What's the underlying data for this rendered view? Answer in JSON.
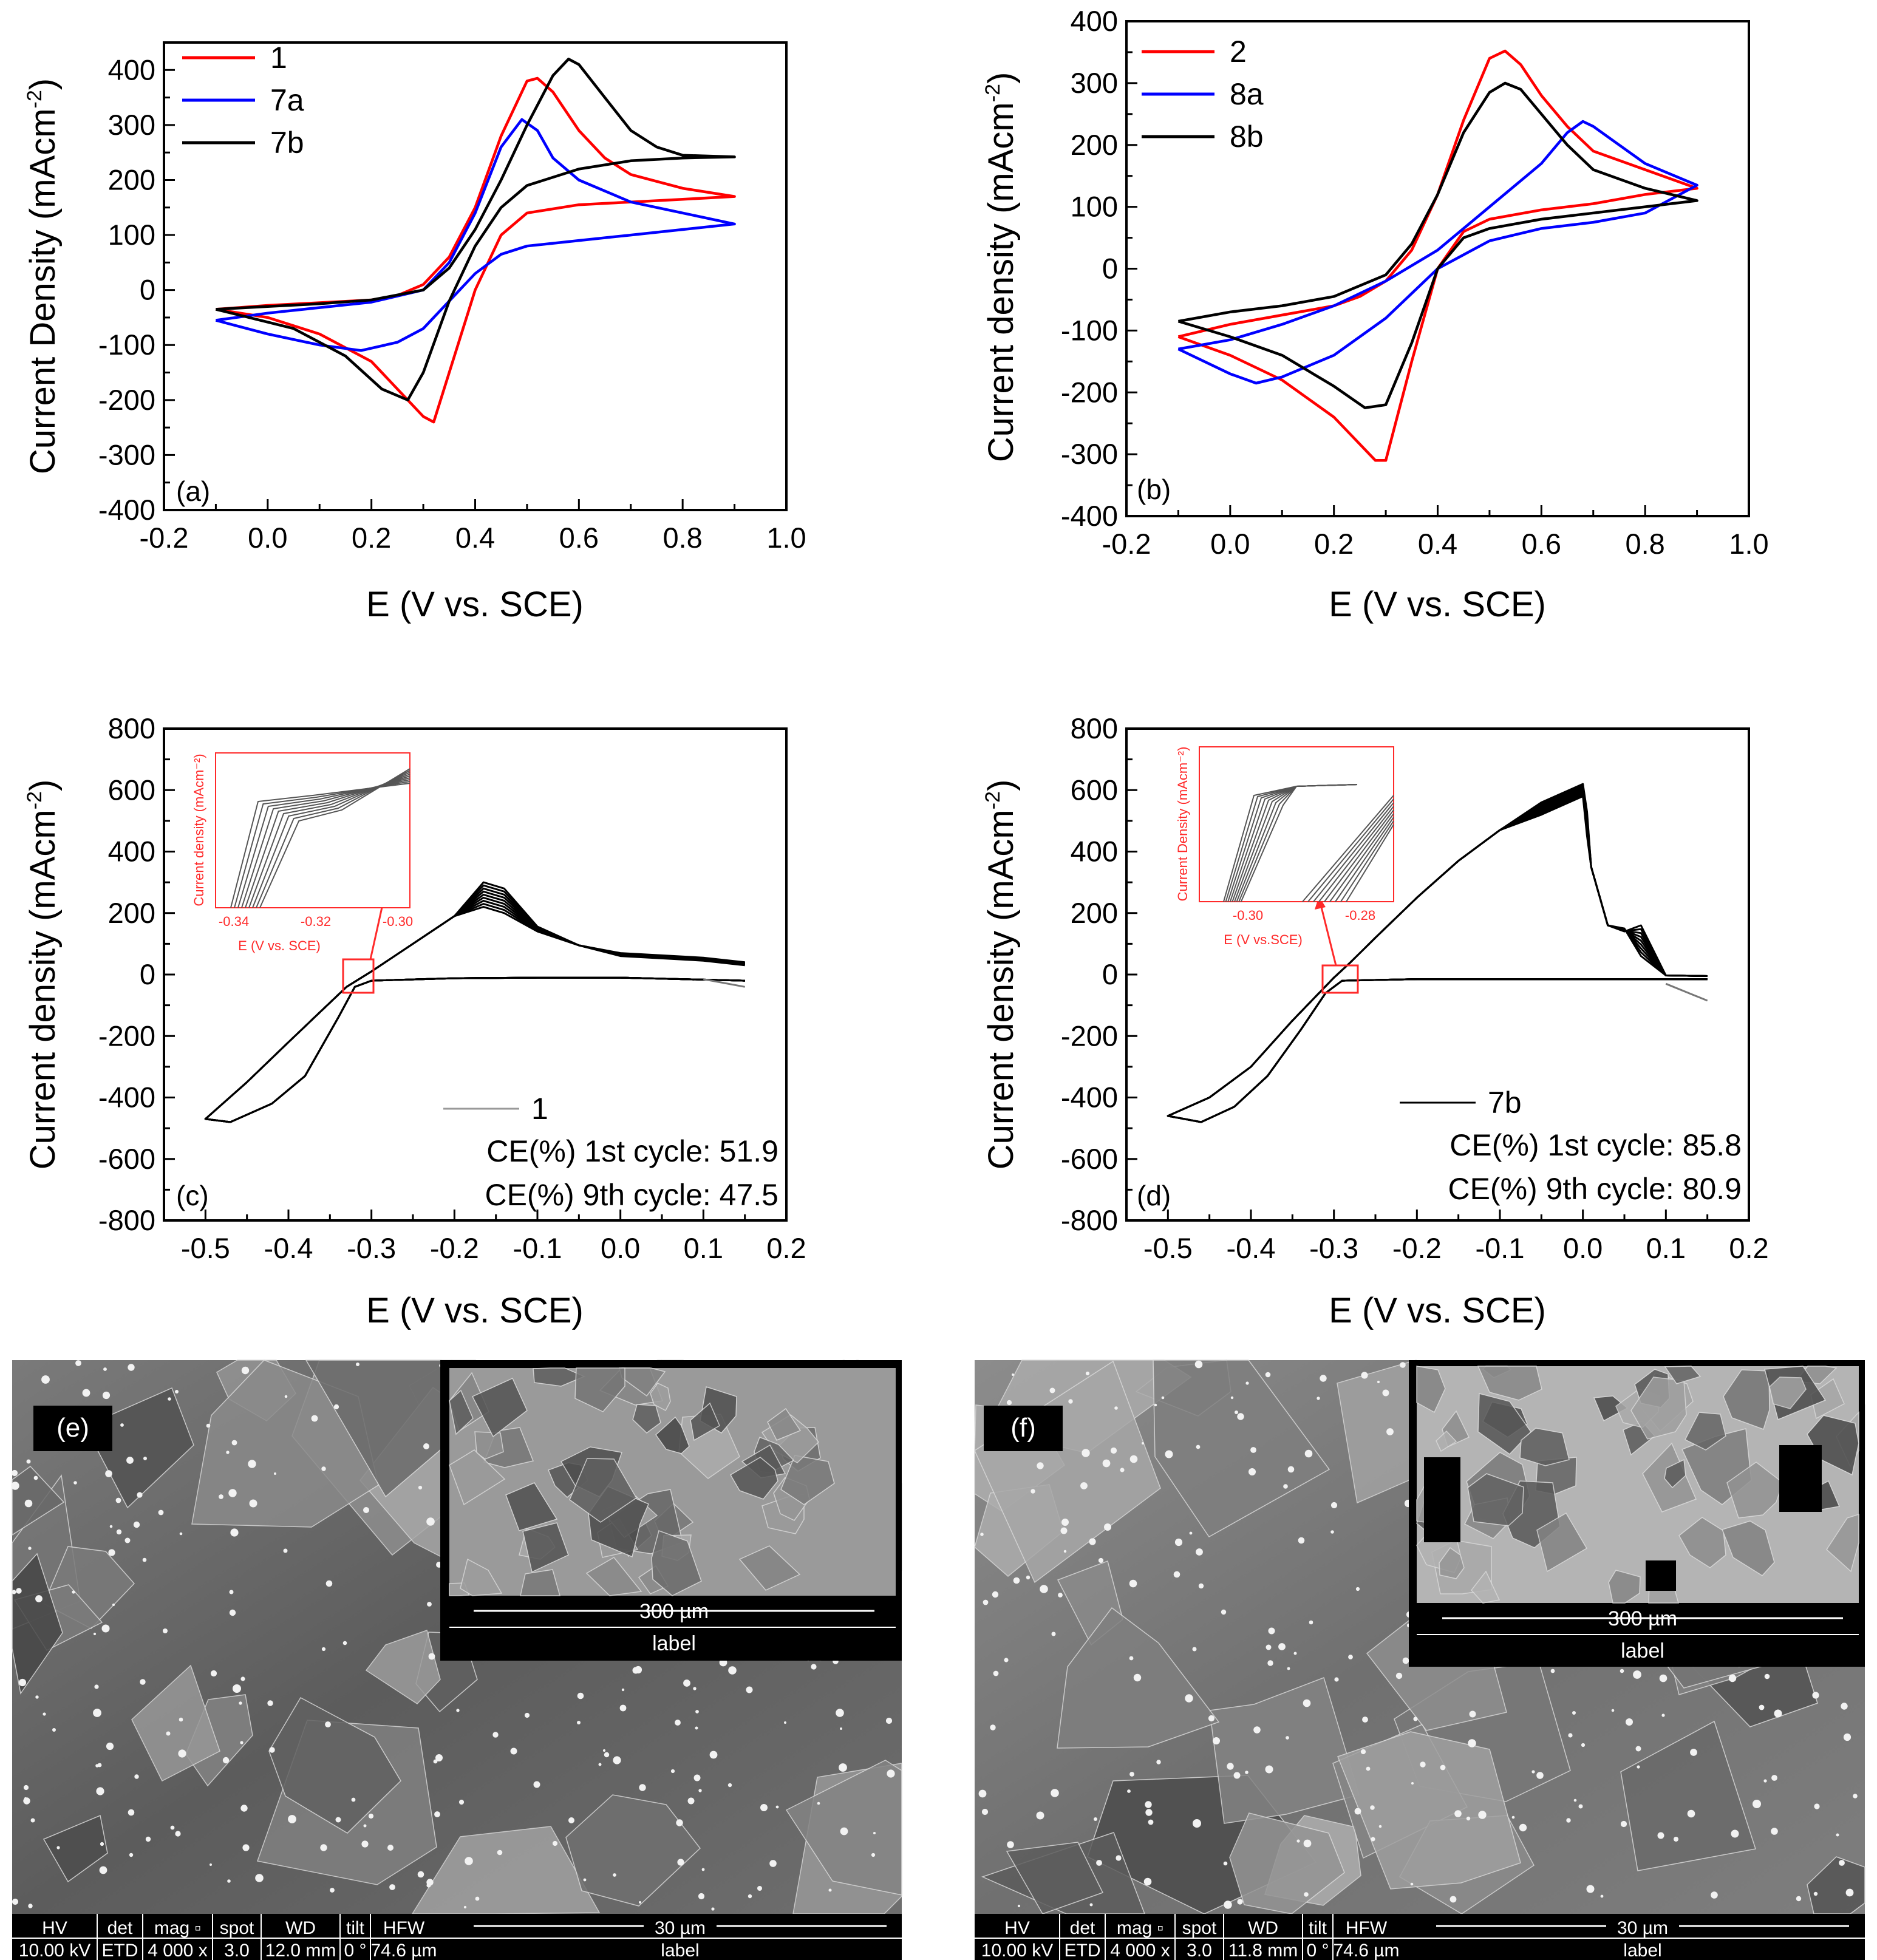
{
  "chart_data": [
    {
      "id": "a",
      "type": "line",
      "panel_label": "(a)",
      "xlabel": "E (V vs. SCE)",
      "ylabel_main": "Current Density (mAcm",
      "ylabel_sup": "-2",
      "ylabel_close": ")",
      "xlim": [
        -0.2,
        1.0
      ],
      "ylim": [
        -400,
        450
      ],
      "xticks": [
        -0.2,
        0.0,
        0.2,
        0.4,
        0.6,
        0.8,
        1.0
      ],
      "xtick_labels": [
        "-0.2",
        "0.0",
        "0.2",
        "0.4",
        "0.6",
        "0.8",
        "1.0"
      ],
      "yticks": [
        -400,
        -300,
        -200,
        -100,
        0,
        100,
        200,
        300,
        400
      ],
      "ytick_labels": [
        "-400",
        "-300",
        "-200",
        "-100",
        "0",
        "100",
        "200",
        "300",
        "400"
      ],
      "legend": [
        "1",
        "7a",
        "7b"
      ],
      "series": [
        {
          "name": "1",
          "color": "#ff0000",
          "points": [
            [
              -0.1,
              -35
            ],
            [
              0.0,
              -28
            ],
            [
              0.1,
              -23
            ],
            [
              0.2,
              -18
            ],
            [
              0.25,
              -10
            ],
            [
              0.3,
              10
            ],
            [
              0.35,
              60
            ],
            [
              0.4,
              150
            ],
            [
              0.45,
              280
            ],
            [
              0.5,
              380
            ],
            [
              0.52,
              385
            ],
            [
              0.55,
              360
            ],
            [
              0.6,
              290
            ],
            [
              0.65,
              240
            ],
            [
              0.7,
              210
            ],
            [
              0.8,
              185
            ],
            [
              0.9,
              170
            ],
            [
              0.8,
              165
            ],
            [
              0.7,
              160
            ],
            [
              0.6,
              155
            ],
            [
              0.5,
              140
            ],
            [
              0.45,
              100
            ],
            [
              0.4,
              0
            ],
            [
              0.35,
              -150
            ],
            [
              0.32,
              -240
            ],
            [
              0.3,
              -230
            ],
            [
              0.25,
              -180
            ],
            [
              0.2,
              -130
            ],
            [
              0.1,
              -80
            ],
            [
              0.0,
              -50
            ],
            [
              -0.1,
              -35
            ]
          ]
        },
        {
          "name": "7a",
          "color": "#0000ff",
          "points": [
            [
              -0.1,
              -55
            ],
            [
              0.0,
              -42
            ],
            [
              0.1,
              -32
            ],
            [
              0.2,
              -22
            ],
            [
              0.3,
              0
            ],
            [
              0.35,
              50
            ],
            [
              0.4,
              140
            ],
            [
              0.45,
              260
            ],
            [
              0.49,
              310
            ],
            [
              0.52,
              290
            ],
            [
              0.55,
              240
            ],
            [
              0.6,
              200
            ],
            [
              0.7,
              160
            ],
            [
              0.8,
              140
            ],
            [
              0.9,
              120
            ],
            [
              0.8,
              110
            ],
            [
              0.7,
              100
            ],
            [
              0.6,
              90
            ],
            [
              0.5,
              80
            ],
            [
              0.45,
              65
            ],
            [
              0.4,
              30
            ],
            [
              0.35,
              -20
            ],
            [
              0.3,
              -70
            ],
            [
              0.25,
              -95
            ],
            [
              0.18,
              -110
            ],
            [
              0.1,
              -100
            ],
            [
              0.0,
              -80
            ],
            [
              -0.1,
              -55
            ]
          ]
        },
        {
          "name": "7b",
          "color": "#000000",
          "points": [
            [
              -0.1,
              -35
            ],
            [
              0.0,
              -30
            ],
            [
              0.1,
              -25
            ],
            [
              0.2,
              -18
            ],
            [
              0.3,
              0
            ],
            [
              0.35,
              40
            ],
            [
              0.4,
              110
            ],
            [
              0.45,
              200
            ],
            [
              0.5,
              300
            ],
            [
              0.55,
              390
            ],
            [
              0.58,
              420
            ],
            [
              0.6,
              410
            ],
            [
              0.65,
              350
            ],
            [
              0.7,
              290
            ],
            [
              0.75,
              260
            ],
            [
              0.8,
              245
            ],
            [
              0.9,
              242
            ],
            [
              0.8,
              240
            ],
            [
              0.7,
              235
            ],
            [
              0.6,
              220
            ],
            [
              0.5,
              190
            ],
            [
              0.45,
              150
            ],
            [
              0.4,
              80
            ],
            [
              0.35,
              -20
            ],
            [
              0.3,
              -150
            ],
            [
              0.27,
              -200
            ],
            [
              0.22,
              -180
            ],
            [
              0.15,
              -120
            ],
            [
              0.05,
              -70
            ],
            [
              -0.1,
              -35
            ]
          ]
        }
      ]
    },
    {
      "id": "b",
      "type": "line",
      "panel_label": "(b)",
      "xlabel": "E (V vs. SCE)",
      "ylabel_main": "Current density (mAcm",
      "ylabel_sup": "-2",
      "ylabel_close": ")",
      "xlim": [
        -0.2,
        1.0
      ],
      "ylim": [
        -400,
        400
      ],
      "xticks": [
        -0.2,
        0.0,
        0.2,
        0.4,
        0.6,
        0.8,
        1.0
      ],
      "xtick_labels": [
        "-0.2",
        "0.0",
        "0.2",
        "0.4",
        "0.6",
        "0.8",
        "1.0"
      ],
      "yticks": [
        -400,
        -300,
        -200,
        -100,
        0,
        100,
        200,
        300,
        400
      ],
      "ytick_labels": [
        "-400",
        "-300",
        "-200",
        "-100",
        "0",
        "100",
        "200",
        "300",
        "400"
      ],
      "legend": [
        "2",
        "8a",
        "8b"
      ],
      "series": [
        {
          "name": "2",
          "color": "#ff0000",
          "points": [
            [
              -0.1,
              -110
            ],
            [
              0.0,
              -90
            ],
            [
              0.1,
              -75
            ],
            [
              0.2,
              -60
            ],
            [
              0.25,
              -45
            ],
            [
              0.3,
              -20
            ],
            [
              0.35,
              30
            ],
            [
              0.4,
              120
            ],
            [
              0.45,
              240
            ],
            [
              0.5,
              340
            ],
            [
              0.53,
              352
            ],
            [
              0.56,
              330
            ],
            [
              0.6,
              280
            ],
            [
              0.65,
              230
            ],
            [
              0.7,
              190
            ],
            [
              0.8,
              160
            ],
            [
              0.9,
              130
            ],
            [
              0.8,
              120
            ],
            [
              0.7,
              105
            ],
            [
              0.6,
              95
            ],
            [
              0.5,
              80
            ],
            [
              0.45,
              60
            ],
            [
              0.4,
              0
            ],
            [
              0.35,
              -150
            ],
            [
              0.3,
              -310
            ],
            [
              0.28,
              -310
            ],
            [
              0.2,
              -240
            ],
            [
              0.1,
              -180
            ],
            [
              0.0,
              -140
            ],
            [
              -0.1,
              -110
            ]
          ]
        },
        {
          "name": "8a",
          "color": "#0000ff",
          "points": [
            [
              -0.1,
              -130
            ],
            [
              0.0,
              -115
            ],
            [
              0.1,
              -90
            ],
            [
              0.2,
              -60
            ],
            [
              0.3,
              -20
            ],
            [
              0.4,
              30
            ],
            [
              0.5,
              100
            ],
            [
              0.6,
              170
            ],
            [
              0.65,
              220
            ],
            [
              0.68,
              238
            ],
            [
              0.7,
              230
            ],
            [
              0.75,
              200
            ],
            [
              0.8,
              170
            ],
            [
              0.9,
              135
            ],
            [
              0.8,
              90
            ],
            [
              0.7,
              75
            ],
            [
              0.6,
              65
            ],
            [
              0.5,
              45
            ],
            [
              0.4,
              0
            ],
            [
              0.3,
              -80
            ],
            [
              0.2,
              -140
            ],
            [
              0.1,
              -175
            ],
            [
              0.05,
              -185
            ],
            [
              0.0,
              -170
            ],
            [
              -0.1,
              -130
            ]
          ]
        },
        {
          "name": "8b",
          "color": "#000000",
          "points": [
            [
              -0.1,
              -85
            ],
            [
              0.0,
              -70
            ],
            [
              0.1,
              -60
            ],
            [
              0.2,
              -45
            ],
            [
              0.3,
              -10
            ],
            [
              0.35,
              40
            ],
            [
              0.4,
              120
            ],
            [
              0.45,
              220
            ],
            [
              0.5,
              285
            ],
            [
              0.53,
              300
            ],
            [
              0.56,
              290
            ],
            [
              0.6,
              250
            ],
            [
              0.65,
              200
            ],
            [
              0.7,
              160
            ],
            [
              0.8,
              130
            ],
            [
              0.9,
              110
            ],
            [
              0.8,
              100
            ],
            [
              0.7,
              90
            ],
            [
              0.6,
              80
            ],
            [
              0.5,
              65
            ],
            [
              0.45,
              50
            ],
            [
              0.4,
              0
            ],
            [
              0.35,
              -120
            ],
            [
              0.3,
              -220
            ],
            [
              0.26,
              -225
            ],
            [
              0.2,
              -190
            ],
            [
              0.1,
              -140
            ],
            [
              0.0,
              -110
            ],
            [
              -0.1,
              -85
            ]
          ]
        }
      ]
    },
    {
      "id": "c",
      "type": "line",
      "panel_label": "(c)",
      "xlabel": "E (V vs. SCE)",
      "ylabel_main": "Current density (mAcm",
      "ylabel_sup": "-2",
      "ylabel_close": ")",
      "xlim": [
        -0.55,
        0.2
      ],
      "ylim": [
        -800,
        800
      ],
      "xticks": [
        -0.5,
        -0.4,
        -0.3,
        -0.2,
        -0.1,
        0.0,
        0.1,
        0.2
      ],
      "xtick_labels": [
        "-0.5",
        "-0.4",
        "-0.3",
        "-0.2",
        "-0.1",
        "0.0",
        "0.1",
        "0.2"
      ],
      "yticks": [
        -800,
        -600,
        -400,
        -200,
        0,
        200,
        400,
        600,
        800
      ],
      "ytick_labels": [
        "-800",
        "-600",
        "-400",
        "-200",
        "0",
        "200",
        "400",
        "600",
        "800"
      ],
      "legend": [
        "1"
      ],
      "ce_lines": [
        "CE(%) 1st cycle: 51.9",
        "CE(%) 9th cycle: 47.5"
      ],
      "cycles": 9,
      "peak_range": [
        220,
        300
      ],
      "inset": {
        "xlabel": "E (V vs. SCE)",
        "ylabel": "Current density (mAcm⁻²)",
        "xtick_labels": [
          "-0.34",
          "-0.32",
          "-0.30"
        ]
      }
    },
    {
      "id": "d",
      "type": "line",
      "panel_label": "(d)",
      "xlabel": "E (V vs. SCE)",
      "ylabel_main": "Current density (mAcm",
      "ylabel_sup": "-2",
      "ylabel_close": ")",
      "xlim": [
        -0.55,
        0.2
      ],
      "ylim": [
        -800,
        800
      ],
      "xticks": [
        -0.5,
        -0.4,
        -0.3,
        -0.2,
        -0.1,
        0.0,
        0.1,
        0.2
      ],
      "xtick_labels": [
        "-0.5",
        "-0.4",
        "-0.3",
        "-0.2",
        "-0.1",
        "0.0",
        "0.1",
        "0.2"
      ],
      "yticks": [
        -800,
        -600,
        -400,
        -200,
        0,
        200,
        400,
        600,
        800
      ],
      "ytick_labels": [
        "-800",
        "-600",
        "-400",
        "-200",
        "0",
        "200",
        "400",
        "600",
        "800"
      ],
      "legend": [
        "7b"
      ],
      "ce_lines": [
        "CE(%) 1st cycle: 85.8",
        "CE(%) 9th cycle: 80.9"
      ],
      "cycles": 9,
      "peak_range": [
        580,
        620
      ],
      "inset": {
        "xlabel": "E (V vs.SCE)",
        "ylabel": "Current Density (mAcm⁻²)",
        "xtick_labels": [
          "-0.30",
          "-0.28"
        ]
      }
    }
  ],
  "sem": [
    {
      "label": "(e)",
      "inset_scale": "300 µm",
      "inset_caption": "label",
      "info_headers": [
        "HV",
        "det",
        "mag ▫",
        "spot",
        "WD",
        "tilt",
        "HFW"
      ],
      "info_values": [
        "10.00 kV",
        "ETD",
        "4 000 x",
        "3.0",
        "12.0 mm",
        "0 °",
        "74.6 µm"
      ],
      "scale": "30 µm",
      "caption": "label"
    },
    {
      "label": "(f)",
      "inset_scale": "300 µm",
      "inset_caption": "label",
      "info_headers": [
        "HV",
        "det",
        "mag ▫",
        "spot",
        "WD",
        "tilt",
        "HFW"
      ],
      "info_values": [
        "10.00 kV",
        "ETD",
        "4 000 x",
        "3.0",
        "11.8 mm",
        "0 °",
        "74.6 µm"
      ],
      "scale": "30 µm",
      "caption": "label"
    }
  ]
}
